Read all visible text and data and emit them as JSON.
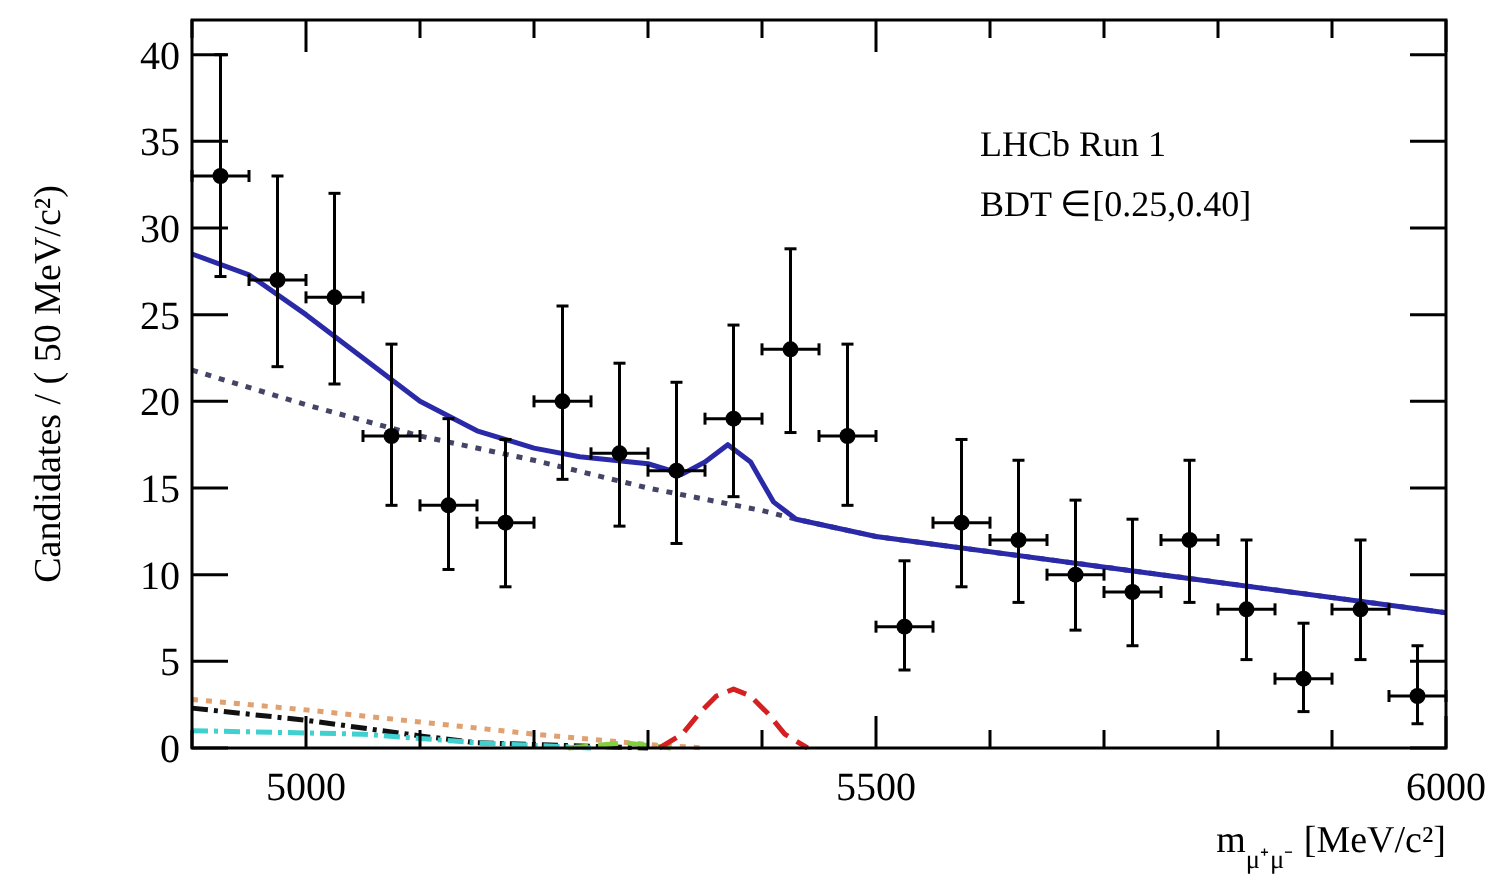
{
  "chart_data": {
    "type": "scatter",
    "xlabel": "m$_{μ⁺μ⁻}$ [MeV/c²]",
    "ylabel": "Candidates / ( 50 MeV/c²)",
    "annotations": [
      "LHCb Run 1",
      "BDT ∈[0.25,0.40]"
    ],
    "xlim": [
      4900,
      6000
    ],
    "xticks": [
      {
        "value": 4900,
        "label": null
      },
      5000,
      {
        "value": 5100,
        "label": null
      },
      {
        "value": 5200,
        "label": null
      },
      {
        "value": 5300,
        "label": null
      },
      {
        "value": 5400,
        "label": null
      },
      5500,
      {
        "value": 5600,
        "label": null
      },
      {
        "value": 5700,
        "label": null
      },
      {
        "value": 5800,
        "label": null
      },
      {
        "value": 5900,
        "label": null
      },
      6000
    ],
    "ylim": [
      0,
      42
    ],
    "yticks": [
      0,
      5,
      10,
      15,
      20,
      25,
      30,
      35,
      40
    ],
    "grid": false,
    "series": [
      {
        "type": "line",
        "color": "#444466",
        "line_style": "dotted",
        "x": [
          4900,
          5000,
          5100,
          5200,
          5300,
          5400,
          5430,
          5500,
          5750,
          6000
        ],
        "values": [
          21.8,
          19.8,
          18,
          16.6,
          15,
          13.7,
          13.2,
          12.2,
          10,
          7.8
        ]
      },
      {
        "type": "line",
        "color": "#e0a070",
        "line_style": "dotted",
        "x": [
          4900,
          5000,
          5100,
          5200,
          5300,
          5350
        ],
        "values": [
          2.8,
          2.2,
          1.5,
          0.8,
          0.2,
          0
        ]
      },
      {
        "type": "line",
        "color": "#111111",
        "line_style": "dashdot",
        "x": [
          4900,
          5000,
          5100,
          5150,
          5250,
          5300
        ],
        "values": [
          2.3,
          1.6,
          0.7,
          0.3,
          0.1,
          0
        ]
      },
      {
        "type": "line",
        "color": "#40d0d0",
        "line_style": "dashdot",
        "x": [
          4900,
          5050,
          5150,
          5250
        ],
        "values": [
          1,
          0.8,
          0.3,
          0
        ]
      },
      {
        "type": "line",
        "color": "#80d040",
        "line_style": "dashed",
        "x": [
          5230,
          5280,
          5320
        ],
        "values": [
          0,
          0.3,
          0
        ]
      },
      {
        "type": "line",
        "color": "#d42020",
        "line_style": "dashed",
        "x": [
          5310,
          5330,
          5345,
          5360,
          5375,
          5390,
          5405,
          5420,
          5440
        ],
        "values": [
          0,
          0.8,
          2,
          3,
          3.4,
          3,
          2,
          0.8,
          0
        ]
      },
      {
        "type": "line",
        "color": "#2a2aa8",
        "line_style": "solid",
        "x": [
          4900,
          4950,
          5000,
          5050,
          5100,
          5150,
          5200,
          5240,
          5300,
          5330,
          5350,
          5370,
          5390,
          5410,
          5430,
          5500,
          5750,
          6000
        ],
        "values": [
          28.5,
          27.3,
          25,
          22.5,
          20,
          18.3,
          17.3,
          16.8,
          16.4,
          15.8,
          16.5,
          17.5,
          16.5,
          14.2,
          13.2,
          12.2,
          10,
          7.8
        ]
      },
      {
        "color": "#000000",
        "marker": "circle",
        "x": [
          4925,
          4975,
          5025,
          5075,
          5125,
          5175,
          5225,
          5275,
          5325,
          5375,
          5425,
          5475,
          5525,
          5575,
          5625,
          5675,
          5725,
          5775,
          5825,
          5875,
          5925,
          5975
        ],
        "values": [
          33,
          27,
          26,
          18,
          14,
          13,
          20,
          17,
          16,
          19,
          23,
          18,
          7,
          13,
          12,
          10,
          9,
          12,
          8,
          4,
          8,
          3
        ],
        "errors": [
          [
            27.2,
            40
          ],
          [
            22,
            33
          ],
          [
            21,
            32
          ],
          [
            14,
            23.3
          ],
          [
            10.3,
            19
          ],
          [
            9.3,
            17.8
          ],
          [
            15.5,
            25.5
          ],
          [
            12.8,
            22.2
          ],
          [
            11.8,
            21.1
          ],
          [
            14.5,
            24.4
          ],
          [
            18.2,
            28.8
          ],
          [
            14,
            23.3
          ],
          [
            4.5,
            10.8
          ],
          [
            9.3,
            17.8
          ],
          [
            8.4,
            16.6
          ],
          [
            6.8,
            14.3
          ],
          [
            5.9,
            13.2
          ],
          [
            8.4,
            16.6
          ],
          [
            5.1,
            12
          ],
          [
            2.1,
            7.2
          ],
          [
            5.1,
            12
          ],
          [
            1.4,
            5.9
          ]
        ],
        "xerrors": [
          25,
          25,
          25,
          25,
          25,
          25,
          25,
          25,
          25,
          25,
          25,
          25,
          25,
          25,
          25,
          25,
          25,
          25,
          25,
          25,
          25,
          25
        ]
      }
    ]
  }
}
